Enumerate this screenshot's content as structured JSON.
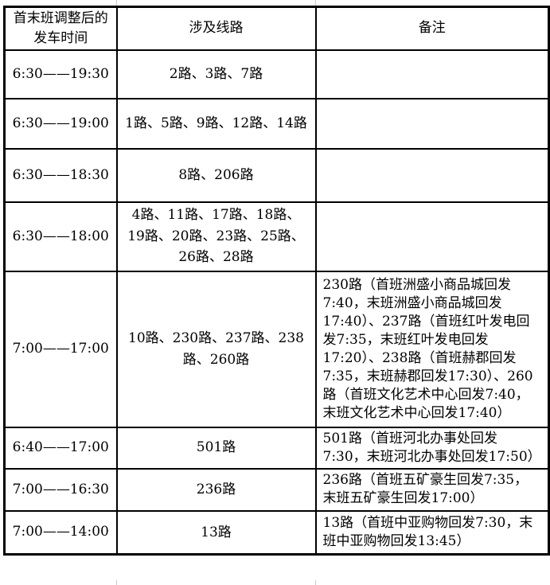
{
  "table": {
    "headers": {
      "time": "首末班调整后的发车时间",
      "routes": "涉及线路",
      "remark": "备注"
    },
    "rows": [
      {
        "time": "6:30——19:30",
        "routes": "2路、3路、7路",
        "remark": ""
      },
      {
        "time": "6:30——19:00",
        "routes": "1路、5路、9路、12路、14路",
        "remark": ""
      },
      {
        "time": "6:30——18:30",
        "routes": "8路、206路",
        "remark": ""
      },
      {
        "time": "6:30——18:00",
        "routes": "4路、11路、17路、18路、19路、20路、23路、25路、26路、28路",
        "remark": ""
      },
      {
        "time": "7:00——17:00",
        "routes": "10路、230路、237路、238路、260路",
        "remark": "230路（首班洲盛小商品城回发7:40，末班洲盛小商品城回发17:40）、237路（首班红叶发电回发7:35，末班红叶发电回发17:20）、238路（首班赫郡回发7:35，末班赫郡回发17:30）、260路（首班文化艺术中心回发7:40，末班文化艺术中心回发17:40）"
      },
      {
        "time": "6:40——17:00",
        "routes": "501路",
        "remark": "501路（首班河北办事处回发7:30，末班河北办事处回发17:50）"
      },
      {
        "time": "7:00——16:30",
        "routes": "236路",
        "remark": "236路（首班五矿豪生回发7:35，末班五矿豪生回发17:00）"
      },
      {
        "time": "7:00——14:00",
        "routes": "13路",
        "remark": "13路（首班中亚购物回发7:30，末班中亚购物回发13:45）"
      }
    ]
  },
  "colors": {
    "border": "#000000",
    "background": "#ffffff",
    "faint_grid": "#c9c9c9",
    "text": "#000000"
  }
}
